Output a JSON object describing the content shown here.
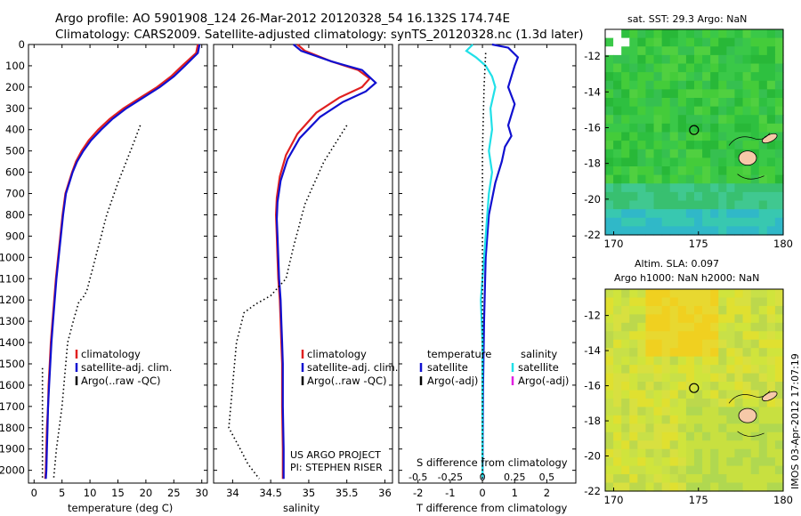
{
  "header": {
    "line1": "Argo profile: AO 5901908_124 26-Mar-2012 20120328_54 16.132S 174.74E",
    "line2": "Climatology: CARS2009. Satellite-adjusted climatology: synTS_20120328.nc (1.3d later)"
  },
  "footer": {
    "project": "US ARGO PROJECT",
    "pi": "PI: STEPHEN RISER",
    "stamp": "IMOS 03-Apr-2012 17:07:19"
  },
  "colors": {
    "climatology": "#e02020",
    "satellite": "#1010d0",
    "argo": "#000000",
    "sal_sat": "#20e0e8",
    "sal_argo": "#e020e0",
    "ocean_green": "#2ec040",
    "land": "#f6c9a8"
  },
  "chart_data": [
    {
      "type": "line",
      "name": "temperature-profile",
      "xlabel": "temperature (deg C)",
      "ylabel": "",
      "xlim": [
        -1,
        31
      ],
      "ylim": [
        2060,
        0
      ],
      "x_ticks": [
        0,
        5,
        10,
        15,
        20,
        25,
        30
      ],
      "x_ticklabels": [
        "0",
        "5",
        "10",
        "15",
        "20",
        "25",
        "30"
      ],
      "y_ticks": [
        0,
        100,
        200,
        300,
        400,
        500,
        600,
        700,
        800,
        900,
        1000,
        1100,
        1200,
        1300,
        1400,
        1500,
        1600,
        1700,
        1800,
        1900,
        2000
      ],
      "y_ticklabels": [
        "0",
        "100",
        "200",
        "300",
        "400",
        "500",
        "600",
        "700",
        "800",
        "900",
        "1000",
        "1100",
        "1200",
        "1300",
        "1400",
        "1500",
        "1600",
        "1700",
        "1800",
        "1900",
        "2000"
      ],
      "legend": [
        "climatology",
        "satellite-adj. clim.",
        "Argo(..raw -QC)"
      ],
      "series": [
        {
          "name": "climatology",
          "color": "#e02020",
          "style": "solid",
          "points": [
            [
              29.3,
              0
            ],
            [
              29.0,
              40
            ],
            [
              26.5,
              100
            ],
            [
              24.5,
              150
            ],
            [
              22.0,
              200
            ],
            [
              19.0,
              250
            ],
            [
              16.0,
              300
            ],
            [
              13.5,
              350
            ],
            [
              11.5,
              400
            ],
            [
              9.8,
              450
            ],
            [
              8.5,
              500
            ],
            [
              7.5,
              550
            ],
            [
              6.8,
              600
            ],
            [
              6.2,
              650
            ],
            [
              5.6,
              700
            ],
            [
              5.1,
              800
            ],
            [
              4.7,
              900
            ],
            [
              4.3,
              1000
            ],
            [
              3.9,
              1100
            ],
            [
              3.6,
              1200
            ],
            [
              3.3,
              1300
            ],
            [
              3.0,
              1400
            ],
            [
              2.8,
              1500
            ],
            [
              2.6,
              1600
            ],
            [
              2.5,
              1700
            ],
            [
              2.3,
              1800
            ],
            [
              2.2,
              1900
            ],
            [
              2.1,
              2000
            ],
            [
              2.0,
              2040
            ]
          ]
        },
        {
          "name": "satellite-adj. clim.",
          "color": "#1010d0",
          "style": "solid",
          "points": [
            [
              29.6,
              0
            ],
            [
              29.3,
              40
            ],
            [
              27.0,
              100
            ],
            [
              25.0,
              150
            ],
            [
              22.5,
              200
            ],
            [
              19.5,
              250
            ],
            [
              16.5,
              300
            ],
            [
              14.0,
              350
            ],
            [
              12.0,
              400
            ],
            [
              10.2,
              450
            ],
            [
              8.8,
              500
            ],
            [
              7.7,
              550
            ],
            [
              6.9,
              600
            ],
            [
              6.3,
              650
            ],
            [
              5.7,
              700
            ],
            [
              5.2,
              800
            ],
            [
              4.8,
              900
            ],
            [
              4.4,
              1000
            ],
            [
              4.0,
              1100
            ],
            [
              3.7,
              1200
            ],
            [
              3.4,
              1300
            ],
            [
              3.1,
              1400
            ],
            [
              2.9,
              1500
            ],
            [
              2.7,
              1600
            ],
            [
              2.5,
              1700
            ],
            [
              2.4,
              1800
            ],
            [
              2.3,
              1900
            ],
            [
              2.2,
              2000
            ],
            [
              2.1,
              2040
            ]
          ]
        },
        {
          "name": "Argo(..raw -QC)",
          "color": "#000000",
          "style": "dotted",
          "points": [
            [
              19.0,
              380
            ],
            [
              18.0,
              450
            ],
            [
              16.5,
              550
            ],
            [
              15.0,
              650
            ],
            [
              13.0,
              800
            ],
            [
              12.0,
              900
            ],
            [
              11.0,
              1000
            ],
            [
              10.0,
              1100
            ],
            [
              9.5,
              1150
            ],
            [
              9.0,
              1180
            ],
            [
              8.0,
              1210
            ],
            [
              7.0,
              1300
            ],
            [
              6.0,
              1400
            ],
            [
              5.0,
              1700
            ],
            [
              4.0,
              1900
            ],
            [
              3.5,
              2040
            ]
          ]
        },
        {
          "name": "argo-deep",
          "color": "#000000",
          "style": "dotted",
          "points": [
            [
              1.5,
              1520
            ],
            [
              1.5,
              2040
            ]
          ]
        }
      ]
    },
    {
      "type": "line",
      "name": "salinity-profile",
      "xlabel": "salinity",
      "ylabel": "",
      "xlim": [
        33.75,
        36.1
      ],
      "ylim": [
        2060,
        0
      ],
      "x_ticks": [
        34,
        34.5,
        35,
        35.5,
        36
      ],
      "x_ticklabels": [
        "34",
        "34.5",
        "35",
        "35.5",
        "36"
      ],
      "legend": [
        "climatology",
        "satellite-adj. clim.",
        "Argo(..raw -QC)"
      ],
      "series": [
        {
          "name": "climatology",
          "color": "#e02020",
          "style": "solid",
          "points": [
            [
              34.85,
              0
            ],
            [
              34.95,
              30
            ],
            [
              35.3,
              80
            ],
            [
              35.65,
              120
            ],
            [
              35.8,
              160
            ],
            [
              35.7,
              200
            ],
            [
              35.4,
              250
            ],
            [
              35.1,
              320
            ],
            [
              34.85,
              420
            ],
            [
              34.7,
              520
            ],
            [
              34.62,
              620
            ],
            [
              34.58,
              720
            ],
            [
              34.57,
              800
            ],
            [
              34.58,
              900
            ],
            [
              34.59,
              1000
            ],
            [
              34.6,
              1100
            ],
            [
              34.62,
              1200
            ],
            [
              34.63,
              1300
            ],
            [
              34.64,
              1400
            ],
            [
              34.65,
              1500
            ],
            [
              34.65,
              1700
            ],
            [
              34.66,
              1900
            ],
            [
              34.66,
              2040
            ]
          ]
        },
        {
          "name": "satellite-adj. clim.",
          "color": "#1010d0",
          "style": "solid",
          "points": [
            [
              34.8,
              0
            ],
            [
              34.9,
              30
            ],
            [
              35.3,
              80
            ],
            [
              35.7,
              120
            ],
            [
              35.88,
              180
            ],
            [
              35.75,
              220
            ],
            [
              35.45,
              270
            ],
            [
              35.15,
              340
            ],
            [
              34.88,
              440
            ],
            [
              34.72,
              540
            ],
            [
              34.63,
              640
            ],
            [
              34.59,
              740
            ],
            [
              34.58,
              820
            ],
            [
              34.59,
              900
            ],
            [
              34.6,
              1000
            ],
            [
              34.61,
              1100
            ],
            [
              34.63,
              1200
            ],
            [
              34.64,
              1300
            ],
            [
              34.65,
              1400
            ],
            [
              34.66,
              1500
            ],
            [
              34.66,
              1700
            ],
            [
              34.67,
              1900
            ],
            [
              34.67,
              2040
            ]
          ]
        },
        {
          "name": "Argo(..raw -QC)",
          "color": "#000000",
          "style": "dotted",
          "points": [
            [
              35.5,
              380
            ],
            [
              35.2,
              550
            ],
            [
              34.95,
              750
            ],
            [
              34.8,
              950
            ],
            [
              34.7,
              1100
            ],
            [
              34.5,
              1180
            ],
            [
              34.3,
              1220
            ],
            [
              34.15,
              1260
            ],
            [
              34.05,
              1400
            ],
            [
              34.0,
              1600
            ],
            [
              33.95,
              1800
            ],
            [
              34.1,
              1900
            ],
            [
              34.2,
              1970
            ],
            [
              34.35,
              2040
            ]
          ]
        }
      ]
    },
    {
      "type": "line",
      "name": "difference-profile",
      "xlabel": "T difference from climatology",
      "x2label": "S difference from climatology",
      "xlim": [
        -2.6,
        2.9
      ],
      "ylim": [
        2060,
        0
      ],
      "x_ticks": [
        -2,
        -1,
        0,
        1,
        2
      ],
      "x_ticklabels": [
        "-2",
        "-1",
        "0",
        "1",
        "2"
      ],
      "x2_ticklabels": [
        "-0.5",
        "-0.25",
        "0",
        "0.25",
        "0.5"
      ],
      "legend_headers": [
        "temperature",
        "salinity"
      ],
      "legend_temperature": [
        "satellite",
        "Argo(-adj)"
      ],
      "legend_salinity": [
        "satellite",
        "Argo(-adj)"
      ],
      "series": [
        {
          "name": "T satellite",
          "color": "#1010d0",
          "style": "solid",
          "points": [
            [
              0.3,
              0
            ],
            [
              0.8,
              15
            ],
            [
              1.1,
              60
            ],
            [
              1.0,
              100
            ],
            [
              0.9,
              150
            ],
            [
              0.8,
              200
            ],
            [
              0.9,
              240
            ],
            [
              1.0,
              280
            ],
            [
              0.9,
              330
            ],
            [
              0.8,
              380
            ],
            [
              0.9,
              430
            ],
            [
              0.7,
              480
            ],
            [
              0.6,
              550
            ],
            [
              0.4,
              650
            ],
            [
              0.2,
              800
            ],
            [
              0.1,
              1000
            ],
            [
              0.05,
              1300
            ],
            [
              0.02,
              1600
            ],
            [
              0.0,
              2040
            ]
          ]
        },
        {
          "name": "S satellite",
          "color": "#20e0e8",
          "style": "solid",
          "points": [
            [
              -0.3,
              0
            ],
            [
              -0.5,
              30
            ],
            [
              -0.2,
              60
            ],
            [
              0.1,
              100
            ],
            [
              0.3,
              150
            ],
            [
              0.4,
              200
            ],
            [
              0.25,
              300
            ],
            [
              0.3,
              400
            ],
            [
              0.2,
              500
            ],
            [
              0.3,
              600
            ],
            [
              0.2,
              700
            ],
            [
              0.15,
              800
            ],
            [
              0.1,
              900
            ],
            [
              0.05,
              1000
            ],
            [
              0.0,
              1100
            ],
            [
              -0.05,
              1200
            ],
            [
              0.0,
              1400
            ],
            [
              0.0,
              1700
            ],
            [
              0.0,
              2040
            ]
          ]
        },
        {
          "name": "zero-line",
          "color": "#000000",
          "style": "dotted",
          "points": [
            [
              0.1,
              40
            ],
            [
              0.05,
              200
            ],
            [
              0.0,
              500
            ],
            [
              0.0,
              2040
            ]
          ]
        }
      ]
    },
    {
      "type": "heatmap",
      "name": "sst-map",
      "title": "sat. SST: 29.3  Argo: NaN",
      "xlim": [
        169.5,
        180
      ],
      "ylim": [
        -22,
        -10.5
      ],
      "x_ticks": [
        170,
        175,
        180
      ],
      "x_ticklabels": [
        "170",
        "175",
        "180"
      ],
      "y_ticks": [
        -12,
        -14,
        -16,
        -18,
        -20,
        -22
      ],
      "y_ticklabels": [
        "-12",
        "-14",
        "-16",
        "-18",
        "-20",
        "-22"
      ],
      "marker": [
        174.74,
        -16.132
      ]
    },
    {
      "type": "heatmap",
      "name": "sla-map",
      "title1": "Altim. SLA: 0.097",
      "title2": "Argo h1000: NaN  h2000: NaN",
      "xlim": [
        169.5,
        180
      ],
      "ylim": [
        -22,
        -10.5
      ],
      "x_ticks": [
        170,
        175,
        180
      ],
      "x_ticklabels": [
        "170",
        "175",
        "180"
      ],
      "y_ticks": [
        -12,
        -14,
        -16,
        -18,
        -20,
        -22
      ],
      "y_ticklabels": [
        "-12",
        "-14",
        "-16",
        "-18",
        "-20",
        "-22"
      ],
      "marker": [
        174.74,
        -16.132
      ]
    }
  ]
}
